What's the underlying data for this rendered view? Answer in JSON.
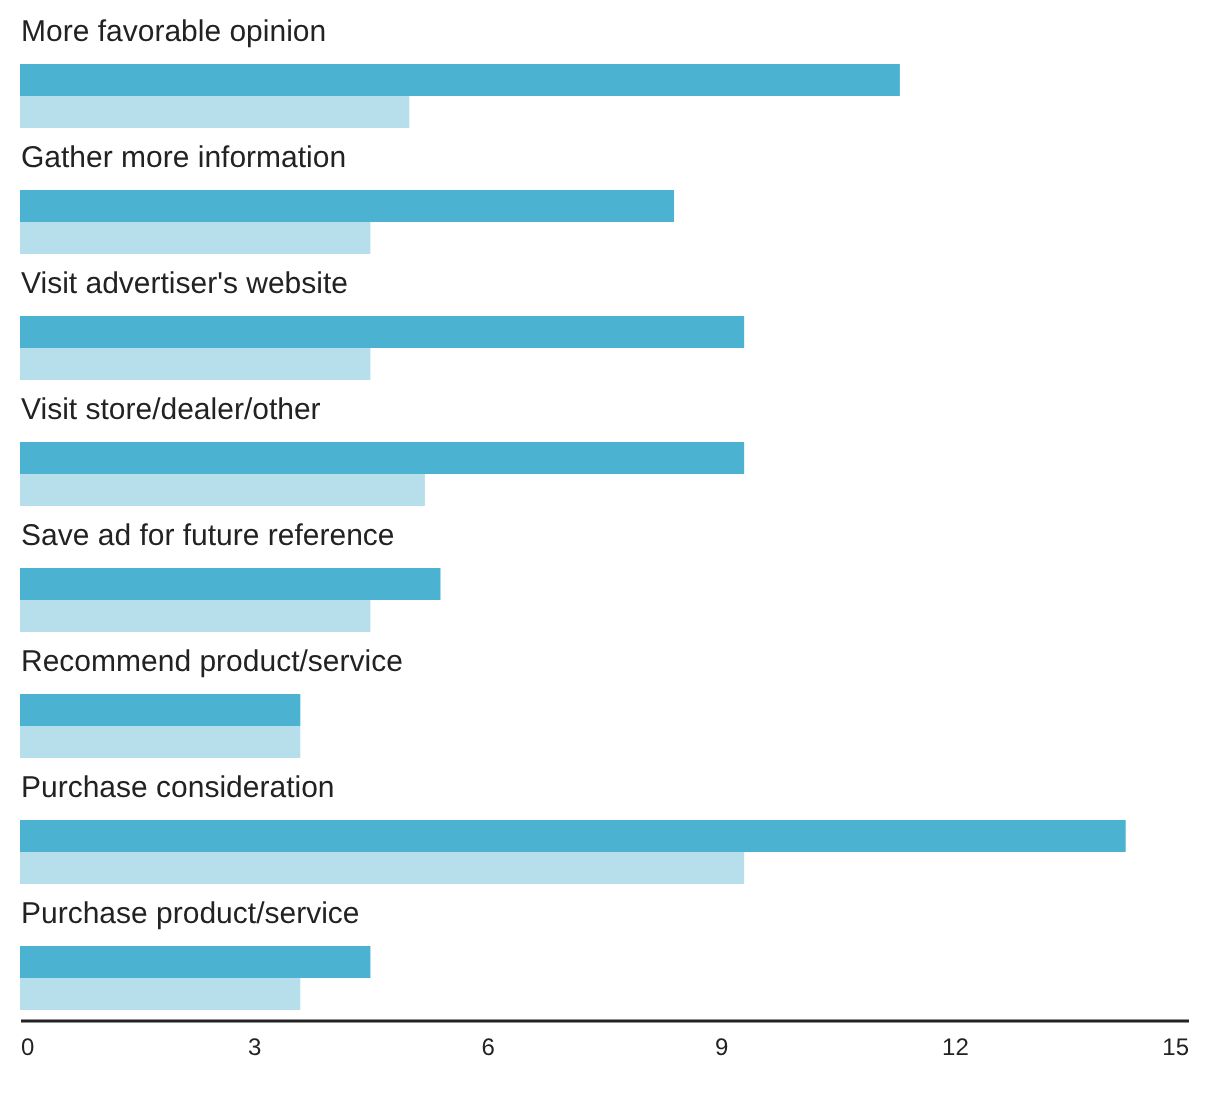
{
  "chart_data": {
    "type": "bar",
    "orientation": "horizontal",
    "categories": [
      "More favorable opinion",
      "Gather more information",
      "Visit advertiser's website",
      "Visit store/dealer/other",
      "Save ad for future reference",
      "Recommend product/service",
      "Purchase consideration",
      "Purchase product/service"
    ],
    "series": [
      {
        "color": "#4bb2d2",
        "values": [
          11.3,
          8.4,
          9.3,
          9.3,
          5.4,
          3.6,
          14.2,
          4.5
        ]
      },
      {
        "color": "#b6dfeb",
        "values": [
          5.0,
          4.5,
          4.5,
          5.2,
          4.5,
          3.6,
          9.3,
          3.6
        ]
      }
    ],
    "xlim": [
      0,
      15
    ],
    "xticks": [
      0,
      3,
      6,
      9,
      12,
      15
    ],
    "grid": false,
    "legend": false
  }
}
